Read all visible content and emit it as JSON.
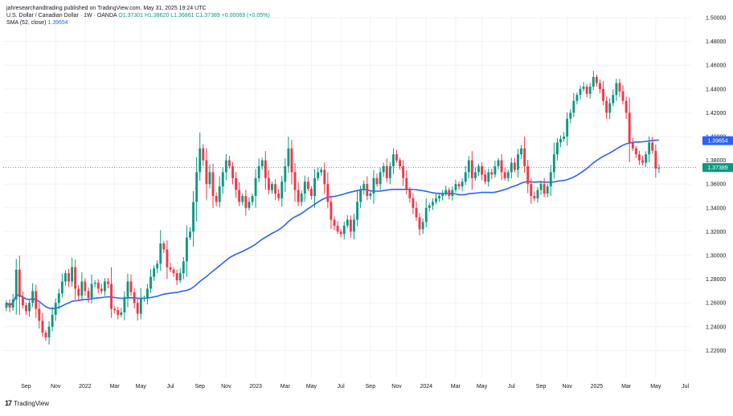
{
  "header": {
    "line1": "jahresearchandtrading published on TradingView.com, May 31, 2025 19:24 UTC",
    "symbol": "U.S. Dollar / Canadian Dollar · 1W · OANDA",
    "ohlc": "O1.37301 H1.38620 L1.36861 C1.37389 +0.00069 (+0.05%)",
    "sma_label": "SMA (52, close)",
    "sma_value": "1.39654"
  },
  "footer": {
    "brand": "TradingView"
  },
  "chart_data": {
    "type": "candlestick",
    "ylim": [
      1.2,
      1.5
    ],
    "y_ticks": [
      "1.50000",
      "1.48000",
      "1.46000",
      "1.44000",
      "1.42000",
      "1.40000",
      "1.38000",
      "1.36000",
      "1.34000",
      "1.32000",
      "1.30000",
      "1.28000",
      "1.26000",
      "1.24000",
      "1.22000"
    ],
    "x_ticks": [
      "Sep",
      "Nov",
      "2022",
      "Mar",
      "May",
      "Jul",
      "Sep",
      "Nov",
      "2023",
      "Mar",
      "May",
      "Jul",
      "Sep",
      "Nov",
      "2024",
      "Mar",
      "May",
      "Jul",
      "Sep",
      "Nov",
      "2025",
      "Mar",
      "May",
      "Jul"
    ],
    "x_tick_index": [
      6,
      15,
      24,
      33,
      41,
      50,
      59,
      67,
      76,
      85,
      93,
      102,
      111,
      119,
      128,
      137,
      145,
      154,
      163,
      171,
      180,
      189,
      198,
      207
    ],
    "grid": true,
    "price_labels": [
      {
        "text": "1.39654",
        "value": 1.39654,
        "color": "#2962ff"
      },
      {
        "text": "1.37389",
        "value": 1.37389,
        "color": "#089981"
      }
    ],
    "colors": {
      "up": "#089981",
      "down": "#f23645",
      "sma": "#2962ff",
      "grid": "#f0f3fa",
      "last_line": "#089981"
    },
    "series": [
      {
        "name": "USD/CAD weekly",
        "close": [
          1.26,
          1.256,
          1.263,
          1.288,
          1.265,
          1.258,
          1.253,
          1.26,
          1.27,
          1.255,
          1.245,
          1.235,
          1.231,
          1.24,
          1.25,
          1.26,
          1.268,
          1.278,
          1.285,
          1.278,
          1.29,
          1.272,
          1.266,
          1.278,
          1.27,
          1.264,
          1.276,
          1.277,
          1.272,
          1.27,
          1.278,
          1.276,
          1.255,
          1.254,
          1.25,
          1.252,
          1.265,
          1.278,
          1.269,
          1.26,
          1.251,
          1.264,
          1.264,
          1.272,
          1.282,
          1.289,
          1.293,
          1.31,
          1.305,
          1.29,
          1.288,
          1.285,
          1.279,
          1.285,
          1.295,
          1.315,
          1.32,
          1.345,
          1.37,
          1.39,
          1.38,
          1.36,
          1.37,
          1.35,
          1.345,
          1.358,
          1.37,
          1.38,
          1.375,
          1.365,
          1.355,
          1.345,
          1.35,
          1.34,
          1.345,
          1.35,
          1.365,
          1.375,
          1.38,
          1.365,
          1.355,
          1.36,
          1.352,
          1.348,
          1.362,
          1.375,
          1.39,
          1.37,
          1.355,
          1.345,
          1.352,
          1.362,
          1.356,
          1.35,
          1.365,
          1.37,
          1.372,
          1.36,
          1.345,
          1.33,
          1.325,
          1.32,
          1.318,
          1.325,
          1.33,
          1.32,
          1.33,
          1.345,
          1.355,
          1.36,
          1.35,
          1.352,
          1.365,
          1.36,
          1.37,
          1.375,
          1.365,
          1.375,
          1.385,
          1.38,
          1.375,
          1.365,
          1.355,
          1.348,
          1.34,
          1.332,
          1.322,
          1.328,
          1.34,
          1.342,
          1.345,
          1.348,
          1.35,
          1.352,
          1.355,
          1.35,
          1.355,
          1.36,
          1.358,
          1.362,
          1.37,
          1.38,
          1.365,
          1.37,
          1.375,
          1.368,
          1.362,
          1.37,
          1.368,
          1.375,
          1.38,
          1.37,
          1.365,
          1.37,
          1.378,
          1.372,
          1.385,
          1.39,
          1.375,
          1.36,
          1.35,
          1.348,
          1.355,
          1.36,
          1.352,
          1.358,
          1.37,
          1.385,
          1.395,
          1.398,
          1.4,
          1.415,
          1.42,
          1.43,
          1.435,
          1.44,
          1.442,
          1.436,
          1.442,
          1.45,
          1.445,
          1.44,
          1.43,
          1.42,
          1.428,
          1.435,
          1.445,
          1.438,
          1.43,
          1.42,
          1.395,
          1.39,
          1.385,
          1.38,
          1.378,
          1.385,
          1.395,
          1.388,
          1.373,
          1.3739
        ]
      }
    ],
    "sma": {
      "name": "SMA (52, close)",
      "value": 1.39654
    }
  }
}
